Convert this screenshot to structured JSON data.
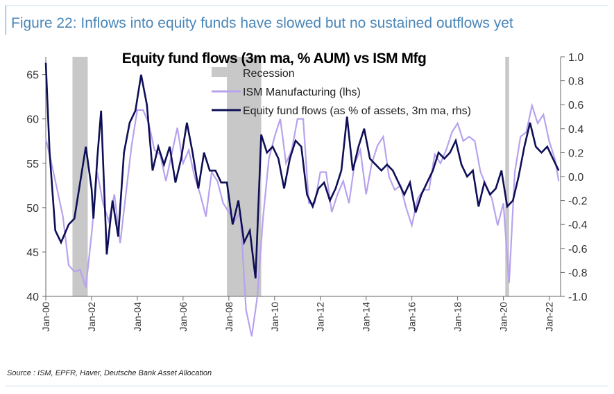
{
  "header": {
    "figure_title": "Figure 22: Inflows into equity funds have slowed but no sustained outflows yet",
    "source": "Source : ISM, EPFR, Haver, Deutsche Bank Asset Allocation"
  },
  "colors": {
    "title_blue": "#4a86b8",
    "ism_line": "#b7a2ee",
    "flows_line": "#0e0f56",
    "recession": "#c8c8c8"
  },
  "chart_data": {
    "type": "line",
    "title": "Equity fund flows (3m ma, % AUM) vs ISM Mfg",
    "grid": false,
    "legend_position": "top-center",
    "x_range": [
      "2000-01",
      "2022-07"
    ],
    "y_left_range": [
      40,
      67
    ],
    "y_right_range": [
      -1.0,
      1.0
    ],
    "x_ticks": [
      "Jan-00",
      "Jan-02",
      "Jan-04",
      "Jan-06",
      "Jan-08",
      "Jan-10",
      "Jan-12",
      "Jan-14",
      "Jan-16",
      "Jan-18",
      "Jan-20",
      "Jan-22"
    ],
    "y_left_ticks": [
      40,
      45,
      50,
      55,
      60,
      65
    ],
    "y_right_ticks": [
      -1.0,
      -0.8,
      -0.6,
      -0.4,
      -0.2,
      0.0,
      0.2,
      0.4,
      0.6,
      0.8,
      1.0
    ],
    "recessions": [
      {
        "start": "2001-03",
        "end": "2001-11"
      },
      {
        "start": "2007-12",
        "end": "2009-06"
      },
      {
        "start": "2020-02",
        "end": "2020-04"
      }
    ],
    "series": [
      {
        "name": "Recession",
        "kind": "band"
      },
      {
        "name": "ISM Manufacturing (lhs)",
        "axis": "left",
        "points": [
          [
            "2000-01",
            57.8
          ],
          [
            "2000-04",
            55.0
          ],
          [
            "2000-07",
            52.0
          ],
          [
            "2000-10",
            49.0
          ],
          [
            "2001-01",
            43.5
          ],
          [
            "2001-04",
            42.8
          ],
          [
            "2001-07",
            43.0
          ],
          [
            "2001-10",
            41.0
          ],
          [
            "2002-01",
            47.0
          ],
          [
            "2002-04",
            54.0
          ],
          [
            "2002-07",
            50.5
          ],
          [
            "2002-10",
            48.5
          ],
          [
            "2003-01",
            51.5
          ],
          [
            "2003-04",
            46.0
          ],
          [
            "2003-07",
            51.5
          ],
          [
            "2003-10",
            57.0
          ],
          [
            "2004-01",
            61.0
          ],
          [
            "2004-04",
            61.0
          ],
          [
            "2004-07",
            59.5
          ],
          [
            "2004-10",
            56.5
          ],
          [
            "2005-01",
            56.0
          ],
          [
            "2005-04",
            53.0
          ],
          [
            "2005-07",
            56.0
          ],
          [
            "2005-10",
            59.0
          ],
          [
            "2006-01",
            55.0
          ],
          [
            "2006-04",
            56.5
          ],
          [
            "2006-07",
            53.5
          ],
          [
            "2006-10",
            51.5
          ],
          [
            "2007-01",
            49.0
          ],
          [
            "2007-04",
            54.0
          ],
          [
            "2007-07",
            53.0
          ],
          [
            "2007-10",
            50.5
          ],
          [
            "2008-01",
            49.5
          ],
          [
            "2008-04",
            48.5
          ],
          [
            "2008-07",
            49.5
          ],
          [
            "2008-10",
            38.5
          ],
          [
            "2009-01",
            35.5
          ],
          [
            "2009-04",
            40.0
          ],
          [
            "2009-07",
            49.0
          ],
          [
            "2009-10",
            55.5
          ],
          [
            "2010-01",
            58.0
          ],
          [
            "2010-04",
            60.0
          ],
          [
            "2010-07",
            55.0
          ],
          [
            "2010-10",
            56.5
          ],
          [
            "2011-01",
            60.0
          ],
          [
            "2011-04",
            60.0
          ],
          [
            "2011-07",
            50.5
          ],
          [
            "2011-10",
            50.5
          ],
          [
            "2012-01",
            54.0
          ],
          [
            "2012-04",
            54.0
          ],
          [
            "2012-07",
            49.5
          ],
          [
            "2012-10",
            51.5
          ],
          [
            "2013-01",
            53.0
          ],
          [
            "2013-04",
            50.5
          ],
          [
            "2013-07",
            55.0
          ],
          [
            "2013-10",
            56.5
          ],
          [
            "2014-01",
            51.5
          ],
          [
            "2014-04",
            55.0
          ],
          [
            "2014-07",
            57.0
          ],
          [
            "2014-10",
            58.0
          ],
          [
            "2015-01",
            53.5
          ],
          [
            "2015-04",
            52.0
          ],
          [
            "2015-07",
            52.5
          ],
          [
            "2015-10",
            50.0
          ],
          [
            "2016-01",
            48.0
          ],
          [
            "2016-04",
            51.0
          ],
          [
            "2016-07",
            52.0
          ],
          [
            "2016-10",
            52.0
          ],
          [
            "2017-01",
            56.0
          ],
          [
            "2017-04",
            55.0
          ],
          [
            "2017-07",
            56.5
          ],
          [
            "2017-10",
            58.5
          ],
          [
            "2018-01",
            59.5
          ],
          [
            "2018-04",
            57.5
          ],
          [
            "2018-07",
            58.0
          ],
          [
            "2018-10",
            57.5
          ],
          [
            "2019-01",
            54.0
          ],
          [
            "2019-04",
            52.5
          ],
          [
            "2019-07",
            51.0
          ],
          [
            "2019-10",
            48.0
          ],
          [
            "2020-01",
            50.5
          ],
          [
            "2020-04",
            41.5
          ],
          [
            "2020-07",
            54.0
          ],
          [
            "2020-10",
            58.0
          ],
          [
            "2021-01",
            58.5
          ],
          [
            "2021-04",
            61.5
          ],
          [
            "2021-07",
            59.5
          ],
          [
            "2021-10",
            60.5
          ],
          [
            "2022-01",
            57.5
          ],
          [
            "2022-04",
            55.5
          ],
          [
            "2022-06",
            53.0
          ]
        ]
      },
      {
        "name": "Equity fund flows (as % of assets, 3m ma, rhs)",
        "axis": "right",
        "points": [
          [
            "2000-01",
            0.95
          ],
          [
            "2000-03",
            0.2
          ],
          [
            "2000-06",
            -0.45
          ],
          [
            "2000-09",
            -0.55
          ],
          [
            "2001-01",
            -0.4
          ],
          [
            "2001-04",
            -0.35
          ],
          [
            "2001-07",
            -0.05
          ],
          [
            "2001-10",
            0.25
          ],
          [
            "2002-01",
            -0.1
          ],
          [
            "2002-02",
            -0.35
          ],
          [
            "2002-04",
            0.15
          ],
          [
            "2002-06",
            0.55
          ],
          [
            "2002-09",
            -0.65
          ],
          [
            "2002-12",
            -0.2
          ],
          [
            "2003-03",
            -0.5
          ],
          [
            "2003-06",
            0.2
          ],
          [
            "2003-09",
            0.45
          ],
          [
            "2003-12",
            0.55
          ],
          [
            "2004-03",
            0.85
          ],
          [
            "2004-06",
            0.6
          ],
          [
            "2004-09",
            0.05
          ],
          [
            "2004-12",
            0.25
          ],
          [
            "2005-03",
            0.1
          ],
          [
            "2005-06",
            0.25
          ],
          [
            "2005-09",
            -0.05
          ],
          [
            "2005-12",
            0.15
          ],
          [
            "2006-03",
            0.45
          ],
          [
            "2006-06",
            0.2
          ],
          [
            "2006-09",
            -0.1
          ],
          [
            "2006-12",
            0.2
          ],
          [
            "2007-03",
            0.05
          ],
          [
            "2007-06",
            0.05
          ],
          [
            "2007-09",
            -0.05
          ],
          [
            "2007-12",
            -0.05
          ],
          [
            "2008-03",
            -0.4
          ],
          [
            "2008-06",
            -0.2
          ],
          [
            "2008-09",
            -0.55
          ],
          [
            "2008-12",
            -0.45
          ],
          [
            "2009-03",
            -0.85
          ],
          [
            "2009-06",
            0.35
          ],
          [
            "2009-09",
            0.2
          ],
          [
            "2009-12",
            0.25
          ],
          [
            "2010-03",
            0.15
          ],
          [
            "2010-06",
            -0.1
          ],
          [
            "2010-09",
            0.15
          ],
          [
            "2010-12",
            0.3
          ],
          [
            "2011-03",
            0.25
          ],
          [
            "2011-06",
            -0.15
          ],
          [
            "2011-09",
            -0.25
          ],
          [
            "2011-12",
            -0.1
          ],
          [
            "2012-03",
            -0.05
          ],
          [
            "2012-06",
            -0.2
          ],
          [
            "2012-09",
            -0.1
          ],
          [
            "2012-12",
            0.05
          ],
          [
            "2013-03",
            0.5
          ],
          [
            "2013-06",
            0.05
          ],
          [
            "2013-09",
            0.25
          ],
          [
            "2013-12",
            0.4
          ],
          [
            "2014-03",
            0.15
          ],
          [
            "2014-06",
            0.1
          ],
          [
            "2014-09",
            0.05
          ],
          [
            "2014-12",
            0.1
          ],
          [
            "2015-03",
            0.05
          ],
          [
            "2015-06",
            -0.05
          ],
          [
            "2015-09",
            -0.15
          ],
          [
            "2015-12",
            -0.05
          ],
          [
            "2016-03",
            -0.3
          ],
          [
            "2016-06",
            -0.15
          ],
          [
            "2016-09",
            -0.05
          ],
          [
            "2016-12",
            0.05
          ],
          [
            "2017-03",
            0.2
          ],
          [
            "2017-06",
            0.15
          ],
          [
            "2017-09",
            0.2
          ],
          [
            "2017-12",
            0.3
          ],
          [
            "2018-03",
            0.1
          ],
          [
            "2018-06",
            0.0
          ],
          [
            "2018-09",
            0.05
          ],
          [
            "2018-12",
            -0.25
          ],
          [
            "2019-03",
            -0.05
          ],
          [
            "2019-06",
            -0.15
          ],
          [
            "2019-09",
            -0.1
          ],
          [
            "2019-12",
            0.05
          ],
          [
            "2020-03",
            -0.25
          ],
          [
            "2020-06",
            -0.2
          ],
          [
            "2020-09",
            0.0
          ],
          [
            "2020-12",
            0.25
          ],
          [
            "2021-03",
            0.45
          ],
          [
            "2021-06",
            0.25
          ],
          [
            "2021-09",
            0.2
          ],
          [
            "2021-12",
            0.25
          ],
          [
            "2022-03",
            0.15
          ],
          [
            "2022-06",
            0.05
          ]
        ]
      }
    ]
  }
}
